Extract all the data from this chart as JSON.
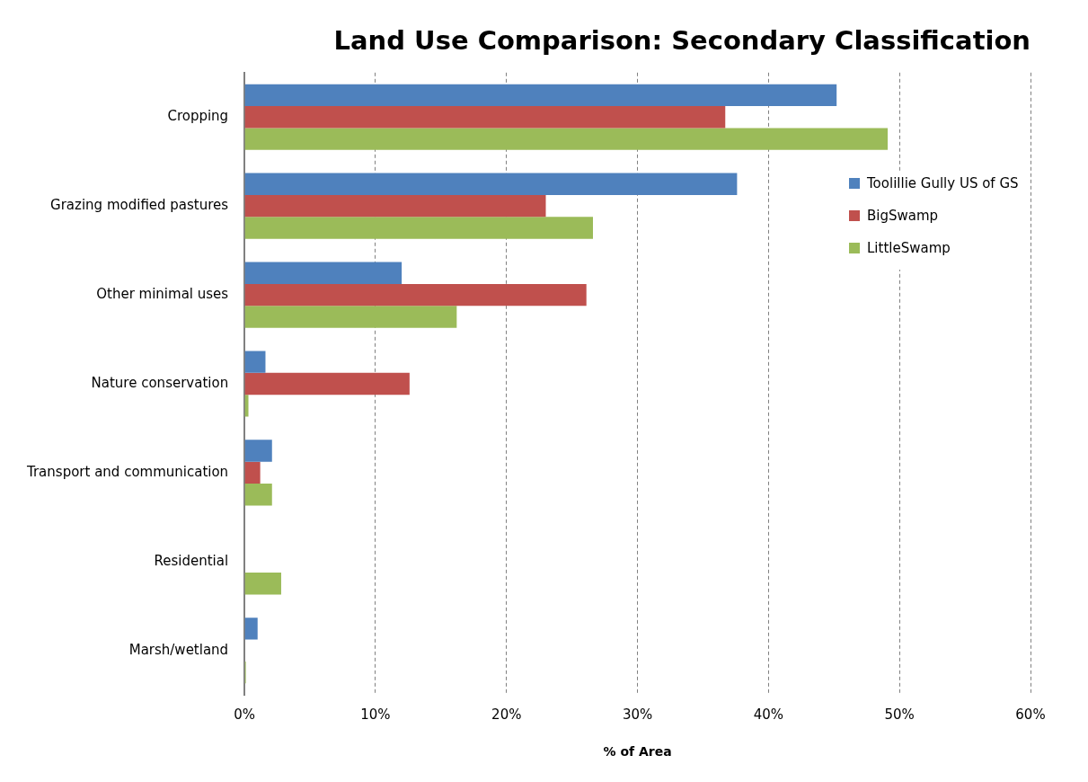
{
  "chart_data": {
    "type": "bar",
    "orientation": "horizontal",
    "title": "Land Use Comparison: Secondary Classification",
    "xlabel": "% of Area",
    "categories": [
      "Cropping",
      "Grazing modified pastures",
      "Other minimal uses",
      "Nature conservation",
      "Transport and communication",
      "Residential",
      "Marsh/wetland"
    ],
    "series": [
      {
        "name": "Toolillie Gully US of GS",
        "color": "#4f81bd",
        "values": [
          45.2,
          37.6,
          12.0,
          1.6,
          2.1,
          0,
          1.0
        ]
      },
      {
        "name": "BigSwamp",
        "color": "#c0504d",
        "values": [
          36.7,
          23.0,
          26.1,
          12.6,
          1.2,
          0,
          0
        ]
      },
      {
        "name": "LittleSwamp",
        "color": "#9bbb59",
        "values": [
          49.1,
          26.6,
          16.2,
          0.3,
          2.1,
          2.8,
          0.1
        ]
      }
    ],
    "xlim": [
      0,
      60
    ],
    "xticks": [
      {
        "value": 0,
        "label": "0%"
      },
      {
        "value": 10,
        "label": "10%"
      },
      {
        "value": 20,
        "label": "20%"
      },
      {
        "value": 30,
        "label": "30%"
      },
      {
        "value": 40,
        "label": "40%"
      },
      {
        "value": 50,
        "label": "50%"
      },
      {
        "value": 60,
        "label": "60%"
      }
    ],
    "grid": "x",
    "legend": "right"
  }
}
